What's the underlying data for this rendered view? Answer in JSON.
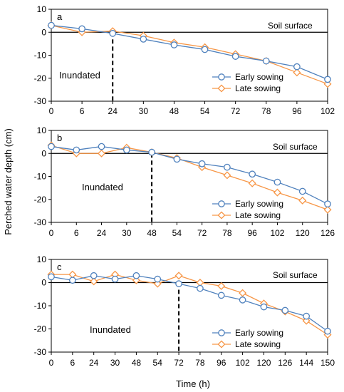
{
  "figure": {
    "ylabel": "Perched water depth (cm)",
    "xlabel": "Time (h)"
  },
  "colors": {
    "early": "#4f81bd",
    "late": "#f79646",
    "axis": "#000000"
  },
  "chart_data": [
    {
      "type": "line",
      "panel_label": "a",
      "categories": [
        "0",
        "6",
        "24",
        "30",
        "48",
        "54",
        "72",
        "78",
        "96",
        "102"
      ],
      "series": [
        {
          "name": "Early sowing",
          "values": [
            3,
            1.5,
            -0.5,
            -3,
            -5.5,
            -7.5,
            -10.5,
            -12.5,
            -15,
            -20.5
          ]
        },
        {
          "name": "Late sowing",
          "values": [
            3,
            0,
            0.5,
            -1.5,
            -4.5,
            -6.5,
            -9.5,
            -12.5,
            -17.5,
            -22.5
          ]
        }
      ],
      "ylim": [
        -30,
        10
      ],
      "yticks": [
        10,
        0,
        -10,
        -20,
        -30
      ],
      "marker_line_at": "24",
      "annotations": {
        "soil": "Soil surface",
        "inundated": "Inundated"
      },
      "legend": "bottom-right"
    },
    {
      "type": "line",
      "panel_label": "b",
      "categories": [
        "0",
        "6",
        "24",
        "30",
        "48",
        "54",
        "72",
        "78",
        "96",
        "102",
        "120",
        "126"
      ],
      "series": [
        {
          "name": "Early sowing",
          "values": [
            3,
            1.5,
            3,
            1.5,
            0.5,
            -2.5,
            -4.5,
            -6,
            -9,
            -12.5,
            -16.5,
            -22
          ]
        },
        {
          "name": "Late sowing",
          "values": [
            3.5,
            0,
            0,
            2.5,
            0.5,
            -2,
            -6,
            -9.5,
            -13,
            -17,
            -20.5,
            -24.5
          ]
        }
      ],
      "ylim": [
        -30,
        10
      ],
      "yticks": [
        10,
        0,
        -10,
        -20,
        -30
      ],
      "marker_line_at": "48",
      "annotations": {
        "soil": "Soil surface",
        "inundated": "Inundated"
      },
      "legend": "bottom-right"
    },
    {
      "type": "line",
      "panel_label": "c",
      "categories": [
        "0",
        "6",
        "24",
        "30",
        "48",
        "54",
        "72",
        "78",
        "96",
        "102",
        "120",
        "126",
        "144",
        "150"
      ],
      "series": [
        {
          "name": "Early sowing",
          "values": [
            2.5,
            1,
            3,
            1.5,
            3,
            1.5,
            -0.5,
            -2.5,
            -5.5,
            -7.5,
            -10.5,
            -12,
            -14.5,
            -21
          ]
        },
        {
          "name": "Late sowing",
          "values": [
            3.5,
            3.5,
            0.5,
            3.5,
            1,
            -0.5,
            3,
            0,
            -1.5,
            -4.5,
            -9,
            -12.5,
            -16.5,
            -22.5
          ]
        }
      ],
      "ylim": [
        -30,
        10
      ],
      "yticks": [
        10,
        0,
        -10,
        -20,
        -30
      ],
      "marker_line_at": "72",
      "annotations": {
        "soil": "Soil surface",
        "inundated": "Inundated"
      },
      "legend": "bottom-right"
    }
  ]
}
